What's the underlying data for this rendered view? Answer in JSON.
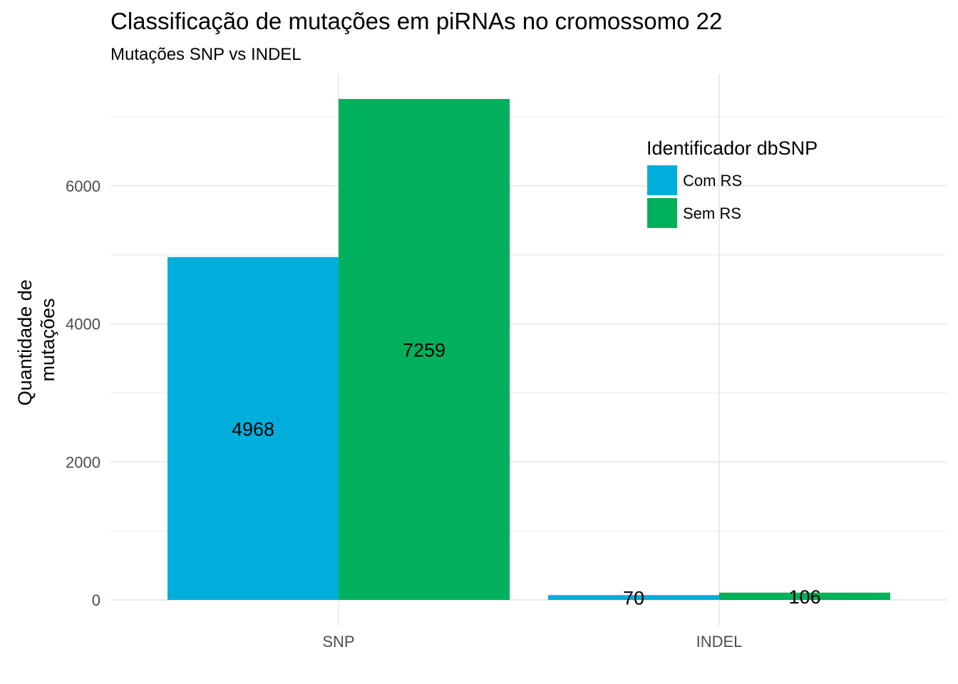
{
  "chart_data": {
    "type": "bar",
    "title": "Classificação de mutações em piRNAs no cromossomo 22",
    "subtitle": "Mutações SNP vs INDEL",
    "xlabel": "",
    "ylabel": "Quantidade de mutações",
    "ylabel_lines": [
      "Quantidade de",
      "mutações"
    ],
    "categories": [
      "SNP",
      "INDEL"
    ],
    "series": [
      {
        "name": "Com RS",
        "color": "#00AEDB",
        "values": [
          4968,
          70
        ]
      },
      {
        "name": "Sem RS",
        "color": "#00B05B",
        "values": [
          7259,
          106
        ]
      }
    ],
    "ylim": [
      0,
      7259
    ],
    "yticks": [
      0,
      2000,
      4000,
      6000
    ],
    "grid": true,
    "legend": {
      "title": "Identificador dbSNP",
      "position": "top-right inside"
    },
    "data_labels": true
  }
}
